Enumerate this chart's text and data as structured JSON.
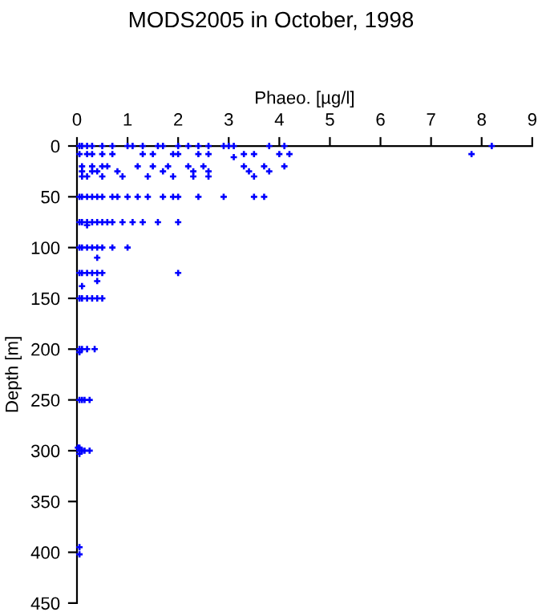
{
  "chart_data": {
    "type": "scatter",
    "title": "MODS2005 in October, 1998",
    "xlabel": "Phaeo. [µg/l]",
    "ylabel": "Depth [m]",
    "xlim": [
      0,
      9
    ],
    "xticks": [
      0,
      1,
      2,
      3,
      4,
      5,
      6,
      7,
      8,
      9
    ],
    "ylim": [
      450,
      0
    ],
    "yticks": [
      0,
      50,
      100,
      150,
      200,
      250,
      300,
      350,
      400,
      450
    ],
    "grid": false,
    "marker": "cross",
    "series": [
      {
        "color": "#0000ff",
        "x": [
          0.05,
          0.1,
          0.2,
          0.3,
          0.5,
          0.7,
          1.0,
          1.1,
          1.3,
          1.6,
          1.7,
          2.0,
          2.2,
          2.4,
          2.6,
          2.9,
          3.0,
          3.1,
          3.8,
          4.1,
          8.2,
          0.05,
          0.2,
          0.3,
          0.5,
          0.7,
          1.3,
          1.5,
          1.9,
          2.0,
          2.4,
          2.6,
          3.3,
          3.5,
          4.0,
          4.2,
          7.8,
          3.1,
          0.1,
          0.3,
          0.5,
          0.6,
          1.2,
          1.5,
          1.8,
          2.2,
          2.5,
          3.3,
          3.7,
          4.1,
          0.1,
          0.3,
          0.4,
          0.8,
          1.7,
          2.3,
          2.6,
          3.4,
          3.8,
          0.1,
          0.2,
          0.5,
          0.9,
          1.4,
          1.9,
          2.3,
          2.6,
          3.5,
          0.05,
          0.1,
          0.2,
          0.3,
          0.4,
          0.5,
          0.7,
          0.8,
          1.0,
          1.2,
          1.4,
          1.7,
          1.9,
          2.0,
          2.4,
          2.9,
          3.5,
          3.7,
          0.05,
          0.1,
          0.2,
          0.3,
          0.4,
          0.5,
          0.6,
          0.7,
          0.9,
          1.1,
          1.3,
          1.6,
          2.0,
          0.2,
          0.05,
          0.1,
          0.2,
          0.3,
          0.4,
          0.5,
          0.7,
          1.0,
          0.4,
          0.05,
          0.1,
          0.2,
          0.3,
          0.4,
          0.5,
          2.0,
          0.4,
          0.1,
          0.05,
          0.1,
          0.2,
          0.3,
          0.4,
          0.5,
          0.05,
          0.1,
          0.2,
          0.35,
          0.05,
          0.05,
          0.1,
          0.15,
          0.25,
          0.02,
          0.05,
          0.05,
          0.1,
          0.15,
          0.25,
          0.05,
          0.05,
          0.05
        ],
        "values": [
          0,
          0,
          0,
          0,
          0,
          0,
          0,
          0,
          0,
          0,
          0,
          0,
          0,
          0,
          0,
          0,
          0,
          0,
          0,
          0,
          0,
          8,
          8,
          8,
          8,
          8,
          8,
          8,
          8,
          8,
          8,
          8,
          8,
          8,
          8,
          8,
          8,
          11,
          20,
          20,
          20,
          20,
          20,
          20,
          20,
          20,
          20,
          20,
          20,
          20,
          25,
          25,
          25,
          25,
          25,
          25,
          25,
          25,
          25,
          30,
          30,
          30,
          30,
          30,
          30,
          30,
          30,
          30,
          50,
          50,
          50,
          50,
          50,
          50,
          50,
          50,
          50,
          50,
          50,
          50,
          50,
          50,
          50,
          50,
          50,
          50,
          75,
          75,
          75,
          75,
          75,
          75,
          75,
          75,
          75,
          75,
          75,
          75,
          75,
          78,
          100,
          100,
          100,
          100,
          100,
          100,
          100,
          100,
          110,
          125,
          125,
          125,
          125,
          125,
          125,
          125,
          133,
          138,
          150,
          150,
          150,
          150,
          150,
          150,
          200,
          200,
          200,
          200,
          203,
          250,
          250,
          250,
          250,
          297,
          297,
          300,
          300,
          300,
          300,
          303,
          395,
          402
        ]
      }
    ]
  }
}
